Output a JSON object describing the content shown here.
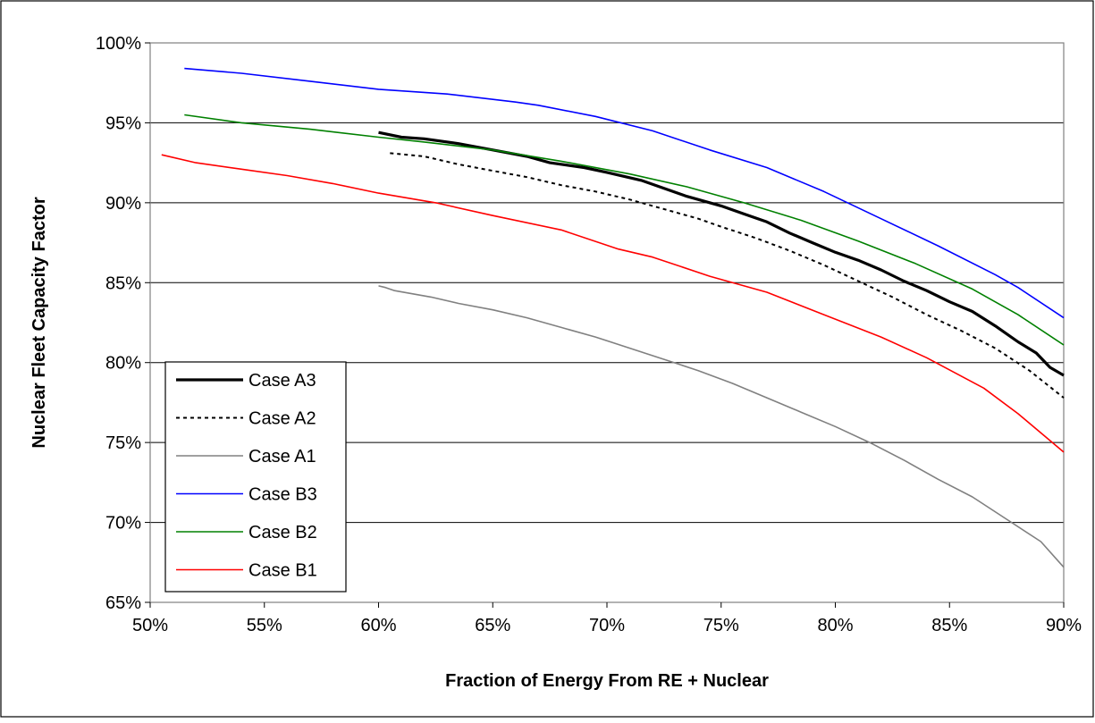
{
  "chart_data": {
    "type": "line",
    "title": "",
    "xlabel": "Fraction of Energy From RE + Nuclear",
    "ylabel": "Nuclear Fleet Capacity Factor",
    "xlim": [
      50,
      90
    ],
    "ylim": [
      65,
      100
    ],
    "x_ticks": [
      50,
      55,
      60,
      65,
      70,
      75,
      80,
      85,
      90
    ],
    "y_ticks": [
      65,
      70,
      75,
      80,
      85,
      90,
      95,
      100
    ],
    "x_tick_labels": [
      "50%",
      "55%",
      "60%",
      "65%",
      "70%",
      "75%",
      "80%",
      "85%",
      "90%"
    ],
    "y_tick_labels": [
      "65%",
      "70%",
      "75%",
      "80%",
      "85%",
      "90%",
      "95%",
      "100%"
    ],
    "grid": "horizontal",
    "legend_position": "lower-left",
    "series": [
      {
        "name": "Case A3",
        "color": "#000000",
        "style": "solid-thick",
        "points": [
          [
            60.0,
            94.4
          ],
          [
            61.0,
            94.1
          ],
          [
            62.0,
            94.0
          ],
          [
            63.5,
            93.7
          ],
          [
            65.0,
            93.3
          ],
          [
            66.5,
            92.9
          ],
          [
            67.5,
            92.5
          ],
          [
            69.0,
            92.2
          ],
          [
            70.0,
            91.9
          ],
          [
            71.5,
            91.4
          ],
          [
            72.5,
            90.9
          ],
          [
            73.5,
            90.4
          ],
          [
            75.0,
            89.8
          ],
          [
            76.0,
            89.3
          ],
          [
            77.0,
            88.8
          ],
          [
            78.0,
            88.1
          ],
          [
            79.0,
            87.5
          ],
          [
            80.0,
            86.9
          ],
          [
            81.0,
            86.4
          ],
          [
            82.0,
            85.8
          ],
          [
            83.0,
            85.1
          ],
          [
            84.0,
            84.5
          ],
          [
            85.0,
            83.8
          ],
          [
            86.0,
            83.2
          ],
          [
            87.0,
            82.3
          ],
          [
            88.0,
            81.3
          ],
          [
            88.8,
            80.6
          ],
          [
            89.4,
            79.7
          ],
          [
            90.0,
            79.2
          ]
        ]
      },
      {
        "name": "Case A2",
        "color": "#000000",
        "style": "dotted",
        "points": [
          [
            60.5,
            93.1
          ],
          [
            62.0,
            92.9
          ],
          [
            63.5,
            92.4
          ],
          [
            65.0,
            92.0
          ],
          [
            66.5,
            91.6
          ],
          [
            68.0,
            91.1
          ],
          [
            69.5,
            90.7
          ],
          [
            71.0,
            90.2
          ],
          [
            72.5,
            89.6
          ],
          [
            74.0,
            89.0
          ],
          [
            75.0,
            88.5
          ],
          [
            76.5,
            87.8
          ],
          [
            78.0,
            87.0
          ],
          [
            79.5,
            86.1
          ],
          [
            81.0,
            85.1
          ],
          [
            82.5,
            84.1
          ],
          [
            84.0,
            83.0
          ],
          [
            85.5,
            82.0
          ],
          [
            87.0,
            80.9
          ],
          [
            88.5,
            79.5
          ],
          [
            90.0,
            77.8
          ]
        ]
      },
      {
        "name": "Case A1",
        "color": "#808080",
        "style": "solid",
        "points": [
          [
            60.0,
            84.8
          ],
          [
            60.3,
            84.7
          ],
          [
            60.7,
            84.5
          ],
          [
            61.5,
            84.3
          ],
          [
            62.3,
            84.1
          ],
          [
            63.5,
            83.7
          ],
          [
            65.0,
            83.3
          ],
          [
            66.5,
            82.8
          ],
          [
            68.0,
            82.2
          ],
          [
            69.5,
            81.6
          ],
          [
            71.0,
            80.9
          ],
          [
            72.5,
            80.2
          ],
          [
            74.0,
            79.5
          ],
          [
            75.5,
            78.7
          ],
          [
            77.0,
            77.8
          ],
          [
            78.5,
            76.9
          ],
          [
            80.0,
            76.0
          ],
          [
            81.5,
            75.0
          ],
          [
            83.0,
            73.9
          ],
          [
            84.5,
            72.7
          ],
          [
            86.0,
            71.6
          ],
          [
            87.5,
            70.2
          ],
          [
            89.0,
            68.8
          ],
          [
            90.0,
            67.2
          ]
        ]
      },
      {
        "name": "Case B3",
        "color": "#0000ff",
        "style": "solid",
        "points": [
          [
            51.5,
            98.4
          ],
          [
            54.0,
            98.1
          ],
          [
            57.0,
            97.6
          ],
          [
            60.0,
            97.1
          ],
          [
            63.0,
            96.8
          ],
          [
            66.0,
            96.3
          ],
          [
            67.0,
            96.1
          ],
          [
            69.5,
            95.4
          ],
          [
            72.0,
            94.5
          ],
          [
            74.5,
            93.3
          ],
          [
            77.0,
            92.2
          ],
          [
            79.5,
            90.7
          ],
          [
            82.0,
            89.0
          ],
          [
            84.5,
            87.3
          ],
          [
            87.0,
            85.5
          ],
          [
            88.0,
            84.7
          ],
          [
            90.0,
            82.8
          ]
        ]
      },
      {
        "name": "Case B2",
        "color": "#008000",
        "style": "solid",
        "points": [
          [
            51.5,
            95.5
          ],
          [
            54.0,
            95.0
          ],
          [
            57.0,
            94.6
          ],
          [
            60.0,
            94.1
          ],
          [
            62.0,
            93.8
          ],
          [
            65.0,
            93.3
          ],
          [
            68.0,
            92.6
          ],
          [
            71.0,
            91.8
          ],
          [
            73.5,
            91.0
          ],
          [
            76.0,
            90.0
          ],
          [
            78.5,
            88.9
          ],
          [
            81.0,
            87.6
          ],
          [
            83.5,
            86.2
          ],
          [
            86.0,
            84.6
          ],
          [
            88.0,
            83.0
          ],
          [
            90.0,
            81.1
          ]
        ]
      },
      {
        "name": "Case B1",
        "color": "#ff0000",
        "style": "solid",
        "points": [
          [
            50.5,
            93.0
          ],
          [
            52.0,
            92.5
          ],
          [
            54.0,
            92.1
          ],
          [
            56.0,
            91.7
          ],
          [
            58.0,
            91.2
          ],
          [
            60.0,
            90.6
          ],
          [
            62.5,
            90.0
          ],
          [
            65.0,
            89.2
          ],
          [
            68.0,
            88.3
          ],
          [
            70.5,
            87.1
          ],
          [
            72.0,
            86.6
          ],
          [
            74.5,
            85.4
          ],
          [
            77.0,
            84.4
          ],
          [
            79.5,
            83.0
          ],
          [
            82.0,
            81.6
          ],
          [
            84.0,
            80.3
          ],
          [
            86.5,
            78.4
          ],
          [
            88.0,
            76.8
          ],
          [
            90.0,
            74.4
          ]
        ]
      }
    ]
  }
}
